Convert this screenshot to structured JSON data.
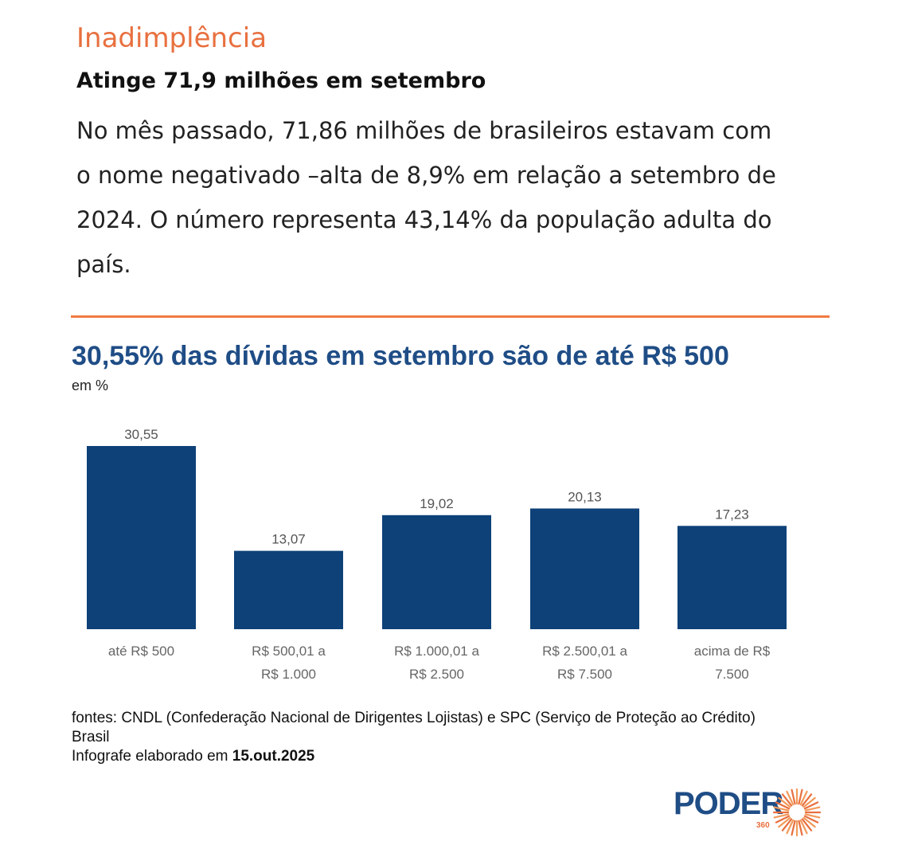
{
  "article": {
    "kicker": "Inadimplência",
    "headline": "Atinge 71,9 milhões em setembro",
    "lead": "No mês passado, 71,86 milhões de brasileiros estavam com o nome negativado –alta de 8,9% em relação a setembro de 2024. O número representa 43,14% da população adulta do país."
  },
  "colors": {
    "accent": "#e8703f",
    "bar": "#0d4178",
    "title": "#1f4d86",
    "divider": "#f07b43"
  },
  "chart_data": {
    "type": "bar",
    "title": "30,55% das dívidas em setembro são de até R$ 500",
    "subtitle": "em %",
    "categories": [
      [
        "até R$ 500"
      ],
      [
        "R$ 500,01 a",
        "R$ 1.000"
      ],
      [
        "R$ 1.000,01 a",
        "R$ 2.500"
      ],
      [
        "R$ 2.500,01 a",
        "R$ 7.500"
      ],
      [
        "acima de R$",
        "7.500"
      ]
    ],
    "values": [
      30.55,
      13.07,
      19.02,
      20.13,
      17.23
    ],
    "value_labels": [
      "30,55",
      "13,07",
      "19,02",
      "20,13",
      "17,23"
    ],
    "ylim": [
      0,
      30.55
    ],
    "grid": false
  },
  "footer": {
    "sources": "fontes: CNDL (Confederação Nacional de Dirigentes Lojistas) e SPC (Serviço de Proteção ao Crédito) Brasil",
    "date_prefix": "Infografe elaborado em ",
    "date": "15.out.2025"
  },
  "logo": {
    "name": "PODER",
    "sub": "360",
    "icon": "sunburst-icon"
  }
}
